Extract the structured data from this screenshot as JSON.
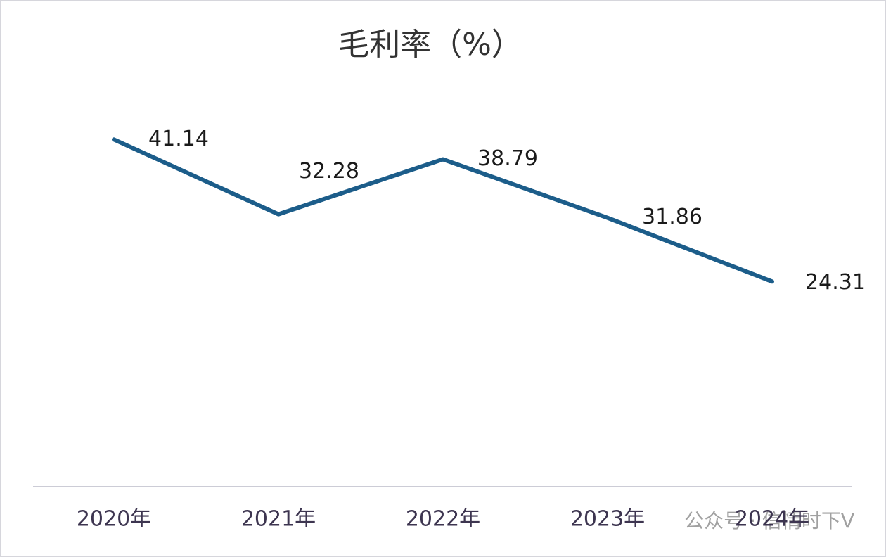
{
  "chart_data": {
    "type": "line",
    "title": "毛利率（%）",
    "categories": [
      "2020年",
      "2021年",
      "2022年",
      "2023年",
      "2024年"
    ],
    "values": [
      41.14,
      32.28,
      38.79,
      31.86,
      24.31
    ],
    "color": "#1c5d8a",
    "ylim": [
      0,
      50
    ],
    "watermark": "公众号 · 信情时下V"
  }
}
